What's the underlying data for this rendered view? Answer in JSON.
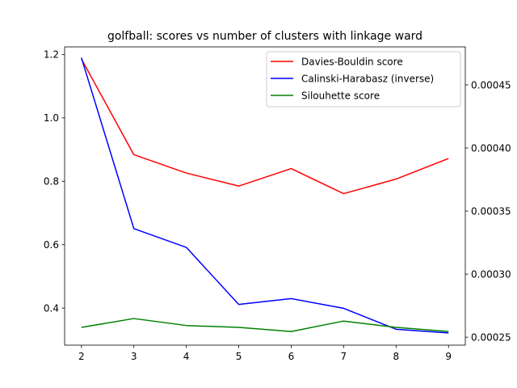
{
  "chart_data": {
    "type": "line",
    "title": "golfball: scores vs number of clusters with linkage ward",
    "x": [
      2,
      3,
      4,
      5,
      6,
      7,
      8,
      9
    ],
    "xlim": [
      1.68,
      9.32
    ],
    "left_axis": {
      "ylim": [
        0.283,
        1.224
      ],
      "ticks": [
        0.4,
        0.6,
        0.8,
        1.0,
        1.2
      ],
      "tick_labels": [
        "0.4",
        "0.6",
        "0.8",
        "1.0",
        "1.2"
      ]
    },
    "right_axis": {
      "ylim": [
        0.0002437,
        0.0004801
      ],
      "ticks": [
        0.00025,
        0.0003,
        0.00035,
        0.0004,
        0.00045
      ],
      "tick_labels": [
        "0.00025",
        "0.00030",
        "0.00035",
        "0.00040",
        "0.00045"
      ]
    },
    "legend_position": "top-right",
    "series": [
      {
        "name": "Davies-Bouldin score",
        "color": "#ff0000",
        "axis": "left",
        "values": [
          1.186,
          0.884,
          0.826,
          0.785,
          0.84,
          0.761,
          0.807,
          0.872
        ]
      },
      {
        "name": "Calinski-Harabasz (inverse)",
        "color": "#0000ff",
        "axis": "right",
        "values": [
          0.0004715,
          0.0003361,
          0.0003212,
          0.000276,
          0.0002806,
          0.0002729,
          0.0002563,
          0.0002534
        ]
      },
      {
        "name": "Silouhette score",
        "color": "#008000",
        "axis": "left",
        "values": [
          0.339,
          0.367,
          0.345,
          0.339,
          0.326,
          0.359,
          0.339,
          0.326
        ]
      }
    ]
  }
}
